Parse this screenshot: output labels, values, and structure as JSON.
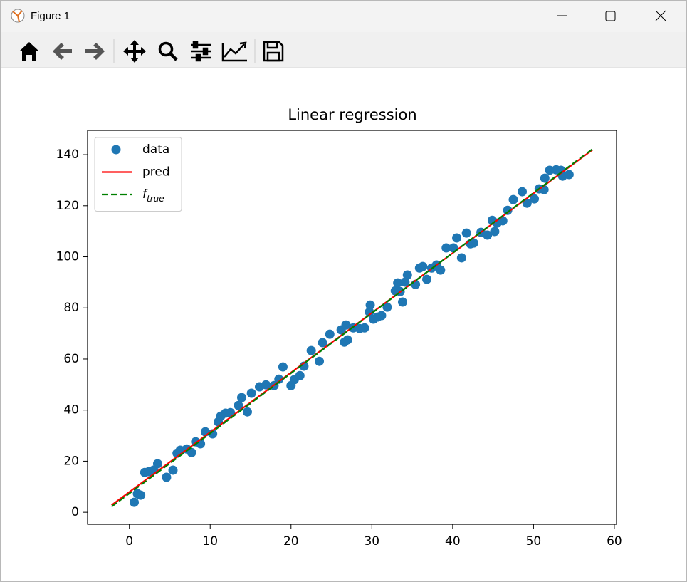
{
  "window": {
    "title": "Figure 1"
  },
  "chart_data": {
    "type": "scatter",
    "title": "Linear regression",
    "legend": "upper left",
    "grid": false,
    "xlim": [
      -5.17,
      60.27
    ],
    "ylim": [
      -4.7,
      149.5
    ],
    "xticks": [
      0,
      10,
      20,
      30,
      40,
      50,
      60
    ],
    "yticks": [
      0,
      20,
      40,
      60,
      80,
      100,
      120,
      140
    ],
    "series": [
      {
        "name": "data",
        "color": "#1f77b4",
        "marker": "o",
        "x": [
          0.6,
          1.0,
          1.4,
          1.9,
          2.4,
          3.0,
          3.5,
          4.6,
          5.4,
          5.9,
          6.3,
          7.1,
          7.7,
          8.2,
          8.8,
          9.4,
          10.3,
          11.0,
          11.3,
          11.9,
          12.5,
          13.5,
          13.9,
          14.6,
          15.1,
          16.1,
          16.9,
          17.9,
          18.5,
          19.0,
          20.0,
          20.4,
          21.1,
          21.6,
          22.5,
          23.5,
          23.9,
          24.8,
          26.2,
          26.6,
          26.8,
          27.0,
          27.7,
          28.5,
          29.1,
          29.7,
          29.8,
          30.2,
          30.7,
          31.2,
          31.9,
          32.9,
          33.2,
          33.5,
          33.8,
          34.1,
          34.4,
          35.4,
          35.9,
          36.3,
          36.8,
          37.4,
          38.0,
          38.5,
          39.2,
          40.1,
          40.5,
          41.1,
          41.7,
          42.2,
          42.6,
          43.5,
          44.3,
          44.9,
          45.2,
          45.5,
          46.2,
          46.8,
          47.5,
          48.6,
          49.2,
          50.1,
          50.7,
          51.3,
          51.4,
          52.0,
          52.8,
          53.4,
          53.6,
          54.4
        ],
        "values": [
          3.9,
          7.3,
          6.7,
          15.6,
          15.9,
          16.5,
          19.0,
          13.7,
          16.5,
          23.1,
          24.3,
          24.8,
          23.4,
          27.6,
          26.8,
          31.5,
          30.7,
          35.4,
          37.6,
          38.8,
          39.0,
          41.8,
          44.9,
          39.3,
          46.6,
          49.1,
          49.9,
          49.6,
          52.1,
          56.9,
          49.6,
          51.9,
          53.5,
          57.2,
          63.3,
          59.1,
          66.4,
          69.7,
          71.4,
          66.6,
          73.3,
          67.5,
          72.2,
          71.9,
          72.2,
          78.4,
          81.1,
          75.6,
          76.4,
          77.0,
          80.3,
          86.7,
          89.8,
          86.4,
          82.3,
          90.1,
          92.9,
          89.2,
          95.6,
          96.2,
          91.2,
          95.6,
          96.8,
          94.8,
          103.5,
          103.5,
          107.4,
          99.6,
          109.3,
          105.1,
          105.4,
          109.6,
          108.5,
          114.3,
          109.9,
          113.2,
          114.1,
          118.2,
          122.4,
          125.5,
          121.0,
          122.7,
          126.6,
          126.3,
          130.8,
          133.9,
          134.1,
          133.9,
          131.6,
          132.2
        ]
      },
      {
        "name": "pred",
        "color": "#ff0000",
        "linestyle": "solid",
        "x": [
          -2.2,
          57.3
        ],
        "values": [
          2.8,
          141.9
        ]
      },
      {
        "name": "f",
        "subscript": "true",
        "color": "#008000",
        "linestyle": "dashed",
        "x": [
          -2.2,
          57.3
        ],
        "values": [
          2.2,
          142.2
        ]
      }
    ]
  }
}
